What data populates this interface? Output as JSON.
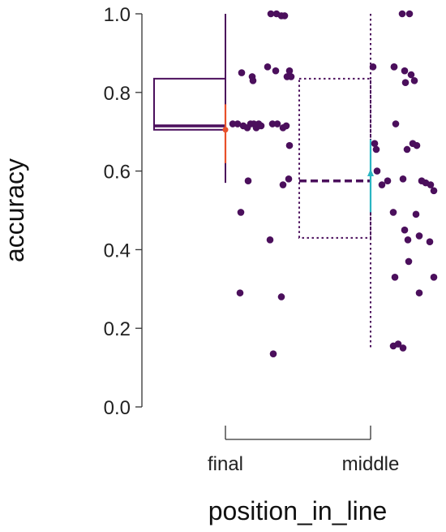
{
  "chart_data": {
    "type": "box",
    "xlabel": "position_in_line",
    "ylabel": "accuracy",
    "ylim": [
      0,
      1
    ],
    "yticks": [
      0.0,
      0.2,
      0.4,
      0.6,
      0.8,
      1.0
    ],
    "ytick_labels": [
      "0.0",
      "0.2",
      "0.4",
      "0.6",
      "0.8",
      "1.0"
    ],
    "categories": [
      "final",
      "middle"
    ],
    "grid": false,
    "legend": "none",
    "groups": [
      {
        "category": "final",
        "box_style": "solid",
        "box_color": "#4b0f5c",
        "whisker_low": 0.57,
        "q1": 0.705,
        "median": 0.715,
        "q3": 0.835,
        "whisker_high": 1.0,
        "mean": 0.705,
        "mean_ci": [
          0.62,
          0.77
        ],
        "mean_color": "#e8502a",
        "points": [
          0.85,
          0.84,
          0.83,
          0.72,
          0.72,
          0.715,
          0.71,
          0.72,
          0.72,
          0.71,
          0.72,
          0.715,
          0.575,
          0.495,
          0.29,
          1.0,
          1.0,
          0.995,
          0.995,
          0.865,
          0.855,
          0.84,
          0.855,
          0.84,
          0.72,
          0.72,
          0.71,
          0.715,
          0.665,
          0.58,
          0.565,
          0.425,
          0.28,
          0.135
        ]
      },
      {
        "category": "middle",
        "box_style": "dotted",
        "box_color": "#4b0f5c",
        "whisker_low": 0.15,
        "q1": 0.43,
        "median": 0.575,
        "q3": 0.835,
        "whisker_high": 1.0,
        "mean": 0.595,
        "mean_ci": [
          0.495,
          0.68
        ],
        "mean_color": "#29b5c2",
        "points": [
          0.865,
          0.865,
          0.72,
          0.67,
          0.655,
          0.655,
          0.6,
          0.575,
          0.565,
          0.495,
          0.45,
          0.33,
          0.155,
          0.16,
          0.15,
          1.0,
          1.0,
          0.865,
          0.855,
          0.845,
          0.83,
          0.825,
          0.67,
          0.665,
          0.58,
          0.575,
          0.57,
          0.565,
          0.55,
          0.49,
          0.435,
          0.425,
          0.42,
          0.37,
          0.33,
          0.29
        ]
      }
    ],
    "point_color": "#4b0f5c"
  }
}
